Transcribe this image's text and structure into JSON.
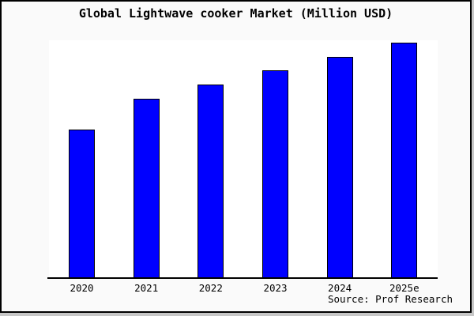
{
  "page": {
    "background": "#fafafa",
    "plot_background": "#ffffff",
    "frame_border_color": "#000000"
  },
  "chart_data": {
    "type": "bar",
    "title": "Global Lightwave cooker Market (Million USD)",
    "categories": [
      "2020",
      "2021",
      "2022",
      "2023",
      "2024",
      "2025e"
    ],
    "values": [
      63,
      76,
      82,
      88,
      94,
      100
    ],
    "value_scale": "relative, max bar = 100 (chart displays no y-axis scale)",
    "xlabel": "",
    "ylabel": "",
    "grid": false,
    "legend": false,
    "axes_visible": {
      "x": true,
      "y": false
    },
    "bar_color": "#0000ff",
    "bar_border_color": "#000000",
    "source_label": "Source: Prof Research"
  }
}
